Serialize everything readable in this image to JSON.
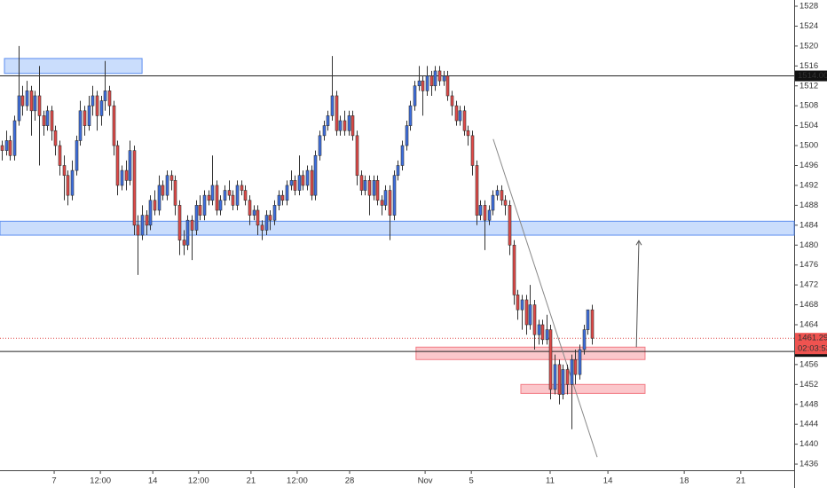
{
  "chart_data": {
    "type": "candlestick",
    "candles": [
      [
        1500,
        1501,
        1497,
        1499
      ],
      [
        1499,
        1503,
        1498,
        1501
      ],
      [
        1501,
        1502,
        1497,
        1498
      ],
      [
        1498,
        1506,
        1497,
        1505
      ],
      [
        1505,
        1520,
        1504,
        1510
      ],
      [
        1510,
        1512,
        1506,
        1508
      ],
      [
        1508,
        1513,
        1507,
        1511
      ],
      [
        1511,
        1512,
        1502,
        1507
      ],
      [
        1507,
        1511,
        1505,
        1510
      ],
      [
        1510,
        1516,
        1496,
        1506
      ],
      [
        1506,
        1507,
        1502,
        1504
      ],
      [
        1504,
        1508,
        1503,
        1507
      ],
      [
        1507,
        1508,
        1501,
        1503
      ],
      [
        1503,
        1504,
        1498,
        1500
      ],
      [
        1500,
        1501,
        1494,
        1496
      ],
      [
        1496,
        1498,
        1489,
        1494
      ],
      [
        1494,
        1495,
        1488,
        1490
      ],
      [
        1490,
        1497,
        1489,
        1495
      ],
      [
        1495,
        1502,
        1494,
        1501
      ],
      [
        1501,
        1509,
        1500,
        1507
      ],
      [
        1507,
        1508,
        1502,
        1504
      ],
      [
        1504,
        1510,
        1503,
        1508
      ],
      [
        1508,
        1512,
        1506,
        1510
      ],
      [
        1510,
        1511,
        1503,
        1506
      ],
      [
        1506,
        1510,
        1504,
        1509
      ],
      [
        1509,
        1517,
        1507,
        1511
      ],
      [
        1511,
        1512,
        1506,
        1508
      ],
      [
        1508,
        1509,
        1498,
        1500
      ],
      [
        1500,
        1501,
        1490,
        1492
      ],
      [
        1492,
        1496,
        1491,
        1495
      ],
      [
        1495,
        1497,
        1491,
        1493
      ],
      [
        1493,
        1501,
        1492,
        1499
      ],
      [
        1499,
        1500,
        1482,
        1484
      ],
      [
        1484,
        1486,
        1474,
        1482
      ],
      [
        1482,
        1488,
        1481,
        1486
      ],
      [
        1486,
        1487,
        1482,
        1484
      ],
      [
        1484,
        1490,
        1483,
        1489
      ],
      [
        1489,
        1491,
        1486,
        1487
      ],
      [
        1487,
        1494,
        1486,
        1492
      ],
      [
        1492,
        1493,
        1489,
        1490
      ],
      [
        1490,
        1495,
        1489,
        1494
      ],
      [
        1494,
        1495,
        1491,
        1493
      ],
      [
        1493,
        1494,
        1486,
        1488
      ],
      [
        1488,
        1489,
        1478,
        1481
      ],
      [
        1481,
        1483,
        1478,
        1480
      ],
      [
        1480,
        1486,
        1479,
        1485
      ],
      [
        1485,
        1486,
        1477,
        1483
      ],
      [
        1483,
        1489,
        1482,
        1488
      ],
      [
        1488,
        1490,
        1485,
        1486
      ],
      [
        1486,
        1491,
        1485,
        1490
      ],
      [
        1490,
        1491,
        1488,
        1489
      ],
      [
        1489,
        1498,
        1488,
        1492
      ],
      [
        1492,
        1493,
        1486,
        1487
      ],
      [
        1487,
        1490,
        1486,
        1489
      ],
      [
        1489,
        1492,
        1488,
        1491
      ],
      [
        1491,
        1493,
        1489,
        1490
      ],
      [
        1490,
        1491,
        1487,
        1488
      ],
      [
        1488,
        1493,
        1487,
        1492
      ],
      [
        1492,
        1493,
        1490,
        1491
      ],
      [
        1491,
        1492,
        1488,
        1489
      ],
      [
        1489,
        1490,
        1484,
        1486
      ],
      [
        1486,
        1488,
        1485,
        1487
      ],
      [
        1487,
        1488,
        1482,
        1484
      ],
      [
        1484,
        1485,
        1481,
        1483
      ],
      [
        1483,
        1487,
        1482,
        1486
      ],
      [
        1486,
        1487,
        1483,
        1485
      ],
      [
        1485,
        1489,
        1484,
        1488
      ],
      [
        1488,
        1491,
        1487,
        1490
      ],
      [
        1490,
        1491,
        1488,
        1489
      ],
      [
        1489,
        1493,
        1488,
        1492
      ],
      [
        1492,
        1495,
        1491,
        1493
      ],
      [
        1493,
        1494,
        1490,
        1491
      ],
      [
        1491,
        1498,
        1490,
        1494
      ],
      [
        1494,
        1495,
        1491,
        1492
      ],
      [
        1492,
        1496,
        1491,
        1495
      ],
      [
        1495,
        1496,
        1489,
        1490
      ],
      [
        1490,
        1499,
        1489,
        1498
      ],
      [
        1498,
        1503,
        1497,
        1502
      ],
      [
        1502,
        1505,
        1501,
        1504
      ],
      [
        1504,
        1507,
        1503,
        1506
      ],
      [
        1506,
        1518,
        1505,
        1510
      ],
      [
        1510,
        1511,
        1502,
        1503
      ],
      [
        1503,
        1506,
        1502,
        1505
      ],
      [
        1505,
        1507,
        1502,
        1503
      ],
      [
        1503,
        1507,
        1502,
        1506
      ],
      [
        1506,
        1507,
        1501,
        1502
      ],
      [
        1502,
        1503,
        1492,
        1494
      ],
      [
        1494,
        1495,
        1490,
        1491
      ],
      [
        1491,
        1494,
        1490,
        1493
      ],
      [
        1493,
        1494,
        1486,
        1490
      ],
      [
        1490,
        1494,
        1489,
        1493
      ],
      [
        1493,
        1494,
        1488,
        1489
      ],
      [
        1489,
        1490,
        1486,
        1488
      ],
      [
        1488,
        1492,
        1487,
        1491
      ],
      [
        1491,
        1492,
        1481,
        1486
      ],
      [
        1486,
        1495,
        1485,
        1494
      ],
      [
        1494,
        1497,
        1493,
        1496
      ],
      [
        1496,
        1501,
        1495,
        1500
      ],
      [
        1500,
        1505,
        1499,
        1504
      ],
      [
        1504,
        1509,
        1503,
        1508
      ],
      [
        1508,
        1513,
        1507,
        1512
      ],
      [
        1512,
        1516,
        1511,
        1513
      ],
      [
        1513,
        1514,
        1506,
        1511
      ],
      [
        1511,
        1516,
        1510,
        1514
      ],
      [
        1514,
        1515,
        1510,
        1512
      ],
      [
        1512,
        1516,
        1511,
        1515
      ],
      [
        1515,
        1516,
        1512,
        1513
      ],
      [
        1513,
        1515,
        1512,
        1514
      ],
      [
        1514,
        1515,
        1509,
        1510
      ],
      [
        1510,
        1511,
        1506,
        1508
      ],
      [
        1508,
        1509,
        1504,
        1505
      ],
      [
        1505,
        1508,
        1504,
        1507
      ],
      [
        1507,
        1508,
        1502,
        1503
      ],
      [
        1503,
        1504,
        1500,
        1502
      ],
      [
        1502,
        1503,
        1494,
        1496
      ],
      [
        1496,
        1497,
        1484,
        1486
      ],
      [
        1486,
        1489,
        1485,
        1488
      ],
      [
        1488,
        1489,
        1479,
        1485
      ],
      [
        1485,
        1488,
        1484,
        1487
      ],
      [
        1487,
        1491,
        1486,
        1490
      ],
      [
        1490,
        1492,
        1489,
        1491
      ],
      [
        1491,
        1492,
        1488,
        1489
      ],
      [
        1489,
        1490,
        1486,
        1488
      ],
      [
        1488,
        1489,
        1478,
        1480
      ],
      [
        1480,
        1481,
        1468,
        1470
      ],
      [
        1470,
        1471,
        1465,
        1467
      ],
      [
        1467,
        1470,
        1463,
        1469
      ],
      [
        1469,
        1470,
        1462,
        1464
      ],
      [
        1464,
        1472,
        1463,
        1468
      ],
      [
        1468,
        1469,
        1459,
        1462
      ],
      [
        1462,
        1465,
        1460,
        1464
      ],
      [
        1464,
        1465,
        1460,
        1461
      ],
      [
        1461,
        1466,
        1460,
        1463
      ],
      [
        1463,
        1464,
        1449,
        1451
      ],
      [
        1451,
        1458,
        1450,
        1456
      ],
      [
        1456,
        1457,
        1448,
        1450
      ],
      [
        1450,
        1456,
        1449,
        1455
      ],
      [
        1455,
        1456,
        1450,
        1452
      ],
      [
        1452,
        1458,
        1443,
        1457
      ],
      [
        1457,
        1459,
        1452,
        1454
      ],
      [
        1454,
        1460,
        1453,
        1459
      ],
      [
        1459,
        1464,
        1458,
        1463
      ],
      [
        1463,
        1467,
        1462,
        1467
      ],
      [
        1467,
        1468,
        1460,
        1461.29
      ]
    ],
    "up_color": "#3d6fe0",
    "down_color": "#e04a48",
    "xlim": [
      -0.43,
      192.04
    ],
    "xticks": [
      {
        "value": 12.7,
        "label": "7"
      },
      {
        "value": 23.9,
        "label": "12:00"
      },
      {
        "value": 36.6,
        "label": "14"
      },
      {
        "value": 47.7,
        "label": "12:00"
      },
      {
        "value": 60.4,
        "label": "21"
      },
      {
        "value": 71.6,
        "label": "12:00"
      },
      {
        "value": 84.3,
        "label": "28"
      },
      {
        "value": 102.6,
        "label": "Nov"
      },
      {
        "value": 113.8,
        "label": "5"
      },
      {
        "value": 132.9,
        "label": "11"
      },
      {
        "value": 146.9,
        "label": "14"
      },
      {
        "value": 165.4,
        "label": "18"
      },
      {
        "value": 179.1,
        "label": "21"
      }
    ],
    "ylim": [
      1434.76,
      1529.25
    ],
    "yticks": [
      1436,
      1440,
      1444,
      1448,
      1452,
      1456,
      1460,
      1464,
      1468,
      1472,
      1476,
      1480,
      1484,
      1488,
      1492,
      1496,
      1500,
      1504,
      1508,
      1512,
      1516,
      1520,
      1524,
      1528
    ],
    "price_lines": [
      {
        "value": 1514,
        "label": "1514.00"
      },
      {
        "value": 1458.62,
        "label": "1458.62"
      }
    ],
    "last_price": 1461.29,
    "countdown": "02:03:53",
    "zones": [
      {
        "x": [
          0.65,
          34.0
        ],
        "y": [
          1514.5,
          1517.5
        ],
        "color": "blue"
      },
      {
        "x": [
          -0.43,
          192.04
        ],
        "y": [
          1482,
          1484.8
        ],
        "color": "blue"
      },
      {
        "x": [
          100.4,
          155.9
        ],
        "y": [
          1457,
          1459.5
        ],
        "color": "red"
      },
      {
        "x": [
          125.8,
          155.9
        ],
        "y": [
          1450.2,
          1452
        ],
        "color": "red"
      }
    ],
    "trend_line": {
      "x": [
        119.1,
        144.3
      ],
      "y": [
        1501.3,
        1437.4
      ]
    },
    "arrow": {
      "x": [
        153.8,
        154.4
      ],
      "y": [
        1459.5,
        1480.9
      ]
    }
  }
}
